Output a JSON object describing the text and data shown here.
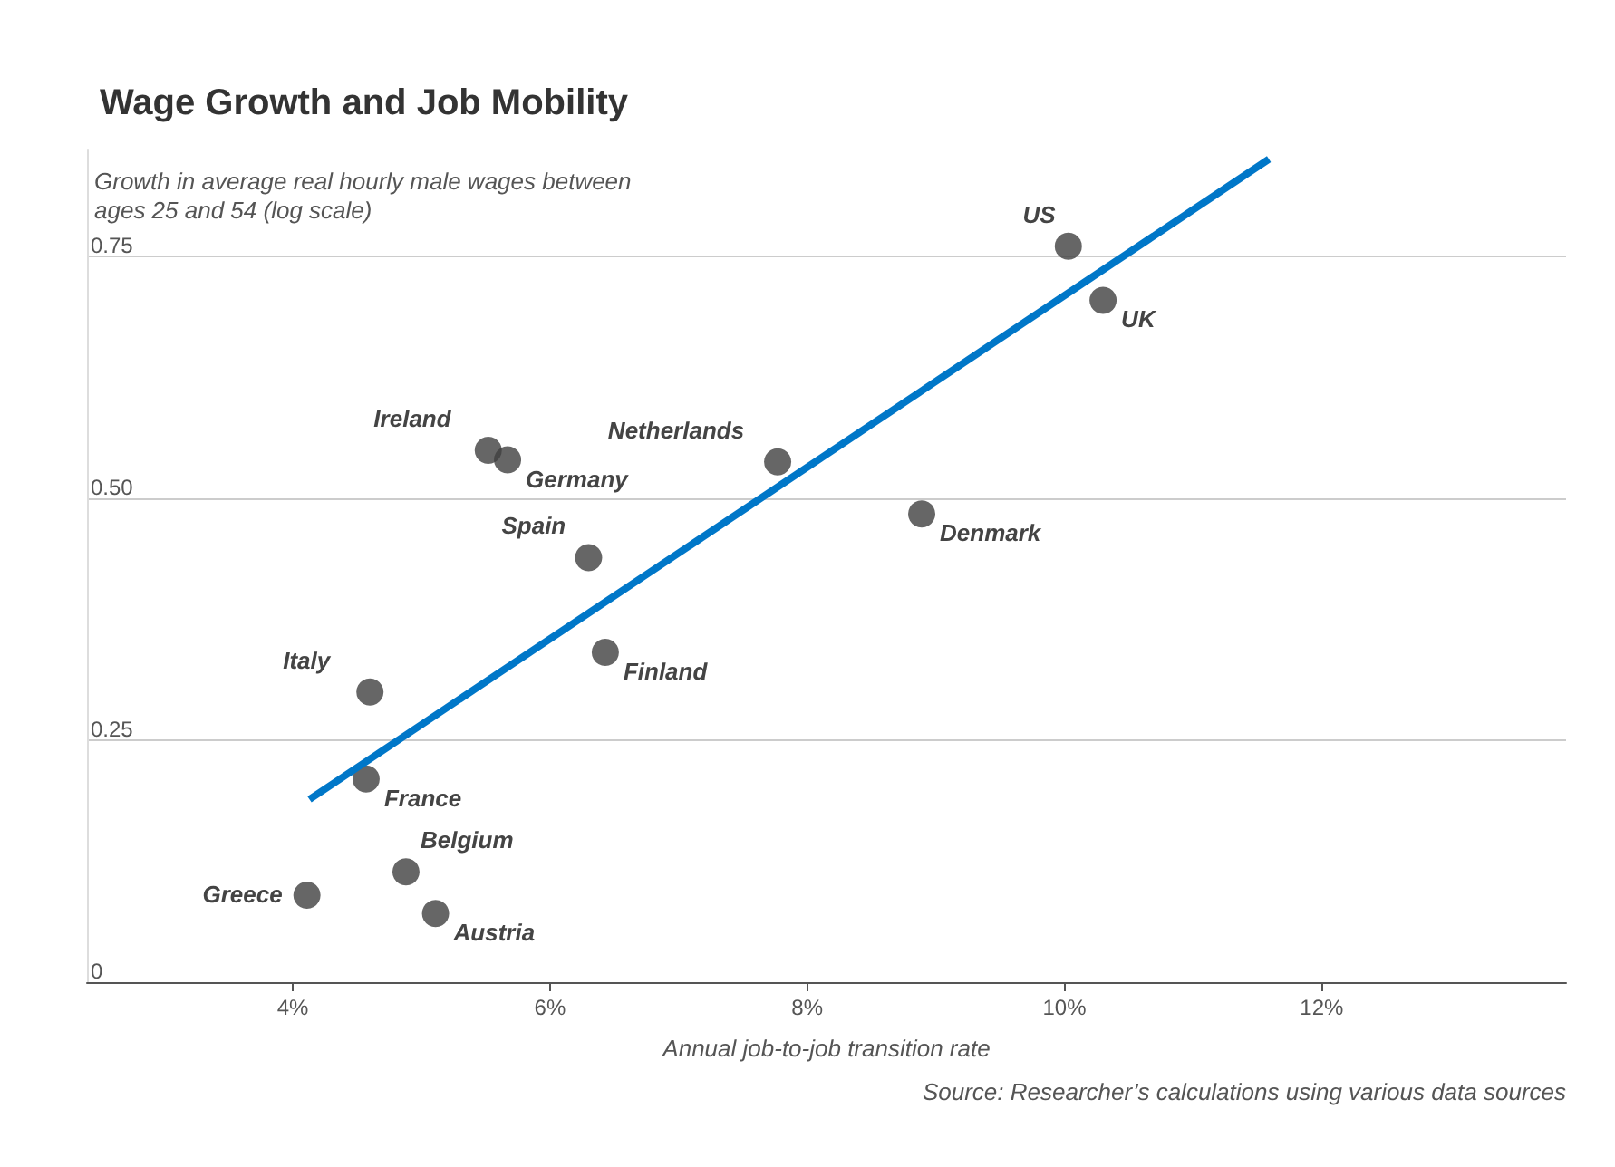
{
  "chart_data": {
    "type": "scatter",
    "title": "Wage Growth and Job Mobility",
    "ylabel": "Growth in average real hourly male wages between ages 25 and 54 (log scale)",
    "xlabel": "Annual job-to-job transition rate",
    "x": [
      10.03,
      10.3,
      7.77,
      8.89,
      5.52,
      5.67,
      6.3,
      6.43,
      4.6,
      4.57,
      4.88,
      4.11,
      5.11
    ],
    "series": [
      {
        "color": "#404040",
        "values": [
          0.761,
          0.705,
          0.538,
          0.484,
          0.55,
          0.54,
          0.439,
          0.341,
          0.3,
          0.21,
          0.114,
          0.09,
          0.071
        ]
      },
      {
        "type": "line",
        "color": "#0077c8",
        "x": [
          4.13,
          11.59
        ],
        "values": [
          0.189,
          0.851
        ]
      }
    ],
    "annotations": [
      {
        "text": "US",
        "x": 10.03,
        "y": 0.761
      },
      {
        "text": "UK",
        "x": 10.3,
        "y": 0.705
      },
      {
        "text": "Netherlands",
        "x": 7.77,
        "y": 0.538
      },
      {
        "text": "Denmark",
        "x": 8.89,
        "y": 0.484
      },
      {
        "text": "Ireland",
        "x": 5.52,
        "y": 0.55
      },
      {
        "text": "Germany",
        "x": 5.67,
        "y": 0.54
      },
      {
        "text": "Spain",
        "x": 6.3,
        "y": 0.439
      },
      {
        "text": "Finland",
        "x": 6.43,
        "y": 0.341
      },
      {
        "text": "Italy",
        "x": 4.6,
        "y": 0.3
      },
      {
        "text": "France",
        "x": 4.57,
        "y": 0.21
      },
      {
        "text": "Belgium",
        "x": 4.88,
        "y": 0.114
      },
      {
        "text": "Greece",
        "x": 4.11,
        "y": 0.09
      },
      {
        "text": "Austria",
        "x": 5.11,
        "y": 0.071
      },
      "Source: Researcher’s calculations using various data sources"
    ],
    "xlim": [
      2.4,
      13.9
    ],
    "xticks": [
      {
        "value": 4,
        "label": "4%"
      },
      {
        "value": 6,
        "label": "6%"
      },
      {
        "value": 8,
        "label": "8%"
      },
      {
        "value": 10,
        "label": "10%"
      },
      {
        "value": 12,
        "label": "12%"
      }
    ],
    "ylim": [
      0,
      0.86
    ],
    "yticks": [
      0,
      {
        "value": 0.25,
        "label": "0.25"
      },
      {
        "value": 0.5,
        "label": "0.50"
      },
      {
        "value": 0.75,
        "label": "0.75"
      }
    ],
    "grid": "y"
  }
}
